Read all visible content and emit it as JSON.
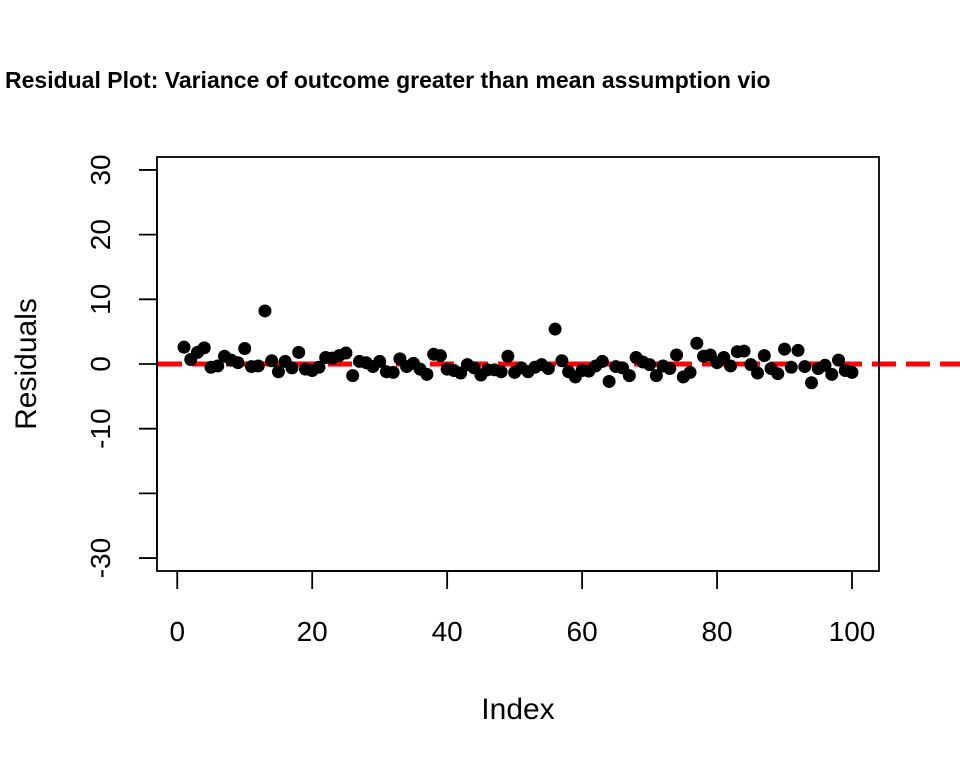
{
  "chart_data": {
    "type": "scatter",
    "title": "Residual Plot: Variance of outcome greater than mean assumption vio",
    "xlabel": "Index",
    "ylabel": "Residuals",
    "xlim": [
      -3,
      104
    ],
    "ylim": [
      -32,
      32
    ],
    "xticks": [
      0,
      20,
      40,
      60,
      80,
      100
    ],
    "xtick_labels": [
      "0",
      "20",
      "40",
      "60",
      "80",
      "100"
    ],
    "yticks": [
      -30,
      -20,
      -10,
      0,
      10,
      20,
      30
    ],
    "ytick_labels": [
      "-30",
      "",
      "-10",
      "0",
      "10",
      "20",
      "30"
    ],
    "grid": false,
    "legend": "none",
    "point_color": "#000000",
    "reference_line": {
      "y": 0,
      "style": "dashed",
      "color": "#ff0000"
    },
    "x": [
      1,
      2,
      3,
      4,
      5,
      6,
      7,
      8,
      9,
      10,
      11,
      12,
      13,
      14,
      15,
      16,
      17,
      18,
      19,
      20,
      21,
      22,
      23,
      24,
      25,
      26,
      27,
      28,
      29,
      30,
      31,
      32,
      33,
      34,
      35,
      36,
      37,
      38,
      39,
      40,
      41,
      42,
      43,
      44,
      45,
      46,
      47,
      48,
      49,
      50,
      51,
      52,
      53,
      54,
      55,
      56,
      57,
      58,
      59,
      60,
      61,
      62,
      63,
      64,
      65,
      66,
      67,
      68,
      69,
      70,
      71,
      72,
      73,
      74,
      75,
      76,
      77,
      78,
      79,
      80,
      81,
      82,
      83,
      84,
      85,
      86,
      87,
      88,
      89,
      90,
      91,
      92,
      93,
      94,
      95,
      96,
      97,
      98,
      99,
      100
    ],
    "y": [
      2.6,
      0.7,
      1.8,
      2.5,
      -0.5,
      -0.3,
      1.2,
      0.6,
      0.2,
      2.4,
      -0.4,
      -0.3,
      8.2,
      0.5,
      -1.2,
      0.4,
      -0.6,
      1.8,
      -0.8,
      -1.0,
      -0.5,
      1.0,
      0.9,
      1.3,
      1.7,
      -1.8,
      0.4,
      0.2,
      -0.4,
      0.4,
      -1.2,
      -1.3,
      0.8,
      -0.4,
      0.1,
      -0.8,
      -1.6,
      1.5,
      1.3,
      -0.8,
      -1.0,
      -1.4,
      -0.1,
      -0.6,
      -1.7,
      -0.9,
      -0.9,
      -1.2,
      1.2,
      -1.3,
      -0.6,
      -1.2,
      -0.5,
      -0.1,
      -0.7,
      5.4,
      0.5,
      -1.2,
      -2.0,
      -1.0,
      -1.1,
      -0.3,
      0.4,
      -2.7,
      -0.4,
      -0.6,
      -1.8,
      1.0,
      0.3,
      -0.1,
      -1.8,
      -0.3,
      -0.7,
      1.4,
      -2.0,
      -1.3,
      3.2,
      1.2,
      1.4,
      0.2,
      1.0,
      -0.3,
      1.9,
      2.0,
      -0.1,
      -1.4,
      1.3,
      -0.7,
      -1.5,
      2.3,
      -0.5,
      2.1,
      -0.4,
      -2.9,
      -0.7,
      -0.2,
      -1.6,
      0.6,
      -1.0,
      -1.3
    ]
  }
}
